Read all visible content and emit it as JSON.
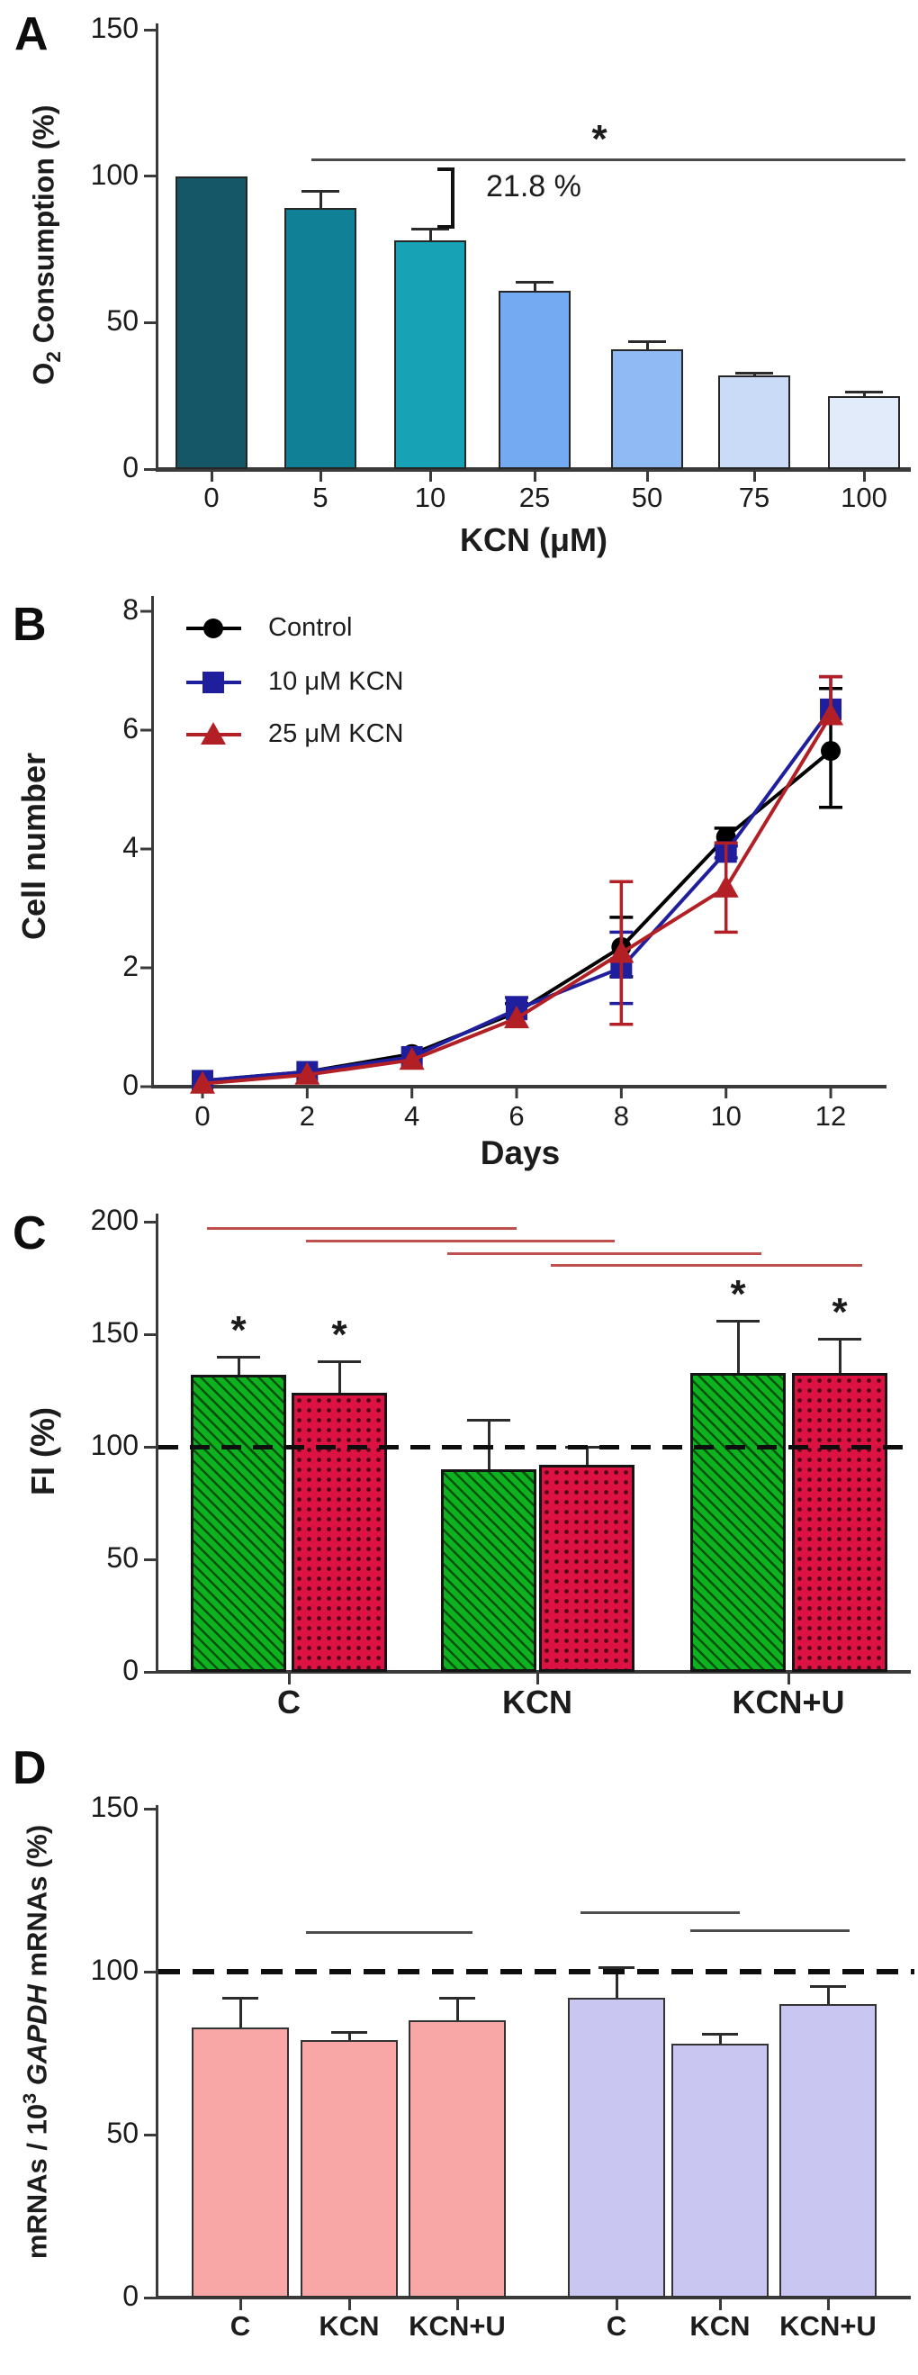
{
  "figure": {
    "panels": [
      {
        "letter": "A"
      },
      {
        "letter": "B"
      },
      {
        "letter": "C"
      },
      {
        "letter": "D"
      }
    ]
  },
  "chart_data": [
    {
      "panel": "A",
      "type": "bar",
      "ylabel_parts": [
        {
          "t": "O"
        },
        {
          "t": "2",
          "sub": true
        },
        {
          "t": " Consumption (%)"
        }
      ],
      "xlabel": "KCN (μM)",
      "categories": [
        "0",
        "5",
        "10",
        "25",
        "50",
        "75",
        "100"
      ],
      "values": [
        100,
        89,
        78,
        61,
        41,
        32,
        25
      ],
      "errors_up": [
        0,
        6,
        4,
        3,
        2.5,
        1,
        1.5
      ],
      "bar_colors": [
        "#155767",
        "#0f8096",
        "#18a2b6",
        "#73aaf2",
        "#8fbaf3",
        "#cadbf7",
        "#e2ebfa"
      ],
      "yticks": [
        0,
        50,
        100,
        150
      ],
      "ylim": [
        0,
        150
      ],
      "grid": false,
      "significance": {
        "line_y": 105,
        "label": "*",
        "from_category": "5",
        "to_category": "100"
      },
      "bracket_label": "21.8 %",
      "bracket_between": [
        "5",
        "10"
      ]
    },
    {
      "panel": "B",
      "type": "line",
      "ylabel": "Cell number",
      "xlabel": "Days",
      "x": [
        0,
        2,
        4,
        6,
        8,
        10,
        12
      ],
      "yticks": [
        0,
        2,
        4,
        6,
        8
      ],
      "ylim": [
        0,
        8
      ],
      "grid": false,
      "legend_position": "top-left",
      "series": [
        {
          "name": "Control",
          "marker": "circle",
          "color": "#000000",
          "values": [
            0.1,
            0.25,
            0.55,
            1.25,
            2.35,
            4.2,
            5.65
          ],
          "err_up": [
            0,
            0,
            0,
            0.15,
            0.5,
            0.15,
            1.05
          ],
          "err_down": [
            0,
            0,
            0,
            0,
            0.5,
            0.15,
            0.95
          ]
        },
        {
          "name": "10 μM KCN",
          "marker": "square",
          "color": "#1f1f9e",
          "values": [
            0.1,
            0.25,
            0.5,
            1.3,
            2.0,
            3.95,
            6.35
          ],
          "err_up": [
            0,
            0,
            0,
            0.2,
            0.6,
            0.1,
            0.55
          ],
          "err_down": [
            0,
            0,
            0,
            0,
            0.6,
            0.1,
            0
          ]
        },
        {
          "name": "25 μM KCN",
          "marker": "triangle",
          "color": "#b22025",
          "values": [
            0.05,
            0.2,
            0.45,
            1.15,
            2.25,
            3.35,
            6.25
          ],
          "err_up": [
            0,
            0,
            0,
            0,
            1.2,
            0.75,
            0.65
          ],
          "err_down": [
            0,
            0,
            0,
            0,
            1.2,
            0.75,
            0
          ]
        }
      ]
    },
    {
      "panel": "C",
      "type": "bar",
      "ylabel": "FI  (%)",
      "categories": [
        "C",
        "KCN",
        "KCN+U"
      ],
      "series": [
        {
          "name": "green-hatched",
          "fill": "#0db21e",
          "pattern": "diagonal-hatch",
          "values": [
            132,
            90,
            133
          ],
          "errors_up": [
            8,
            22,
            23
          ],
          "stars": [
            true,
            false,
            true
          ]
        },
        {
          "name": "red-dotted",
          "fill": "#dc1243",
          "pattern": "dots",
          "values": [
            124,
            92,
            133
          ],
          "errors_up": [
            14,
            8,
            15
          ],
          "stars": [
            true,
            false,
            true
          ]
        }
      ],
      "yticks": [
        0,
        50,
        100,
        150,
        200
      ],
      "ylim": [
        0,
        200
      ],
      "grid": false,
      "dashed_line_y": 100,
      "star_symbol": "*",
      "sig_lines": [
        {
          "color": "#c0504d",
          "y": 197,
          "from": "green C",
          "to": "green KCN"
        },
        {
          "color": "#c0504d",
          "y": 191.5,
          "from": "red C",
          "to": "red KCN"
        },
        {
          "color": "#c0504d",
          "y": 186,
          "from": "green KCN",
          "to": "green KCN+U"
        },
        {
          "color": "#c0504d",
          "y": 180.5,
          "from": "red KCN",
          "to": "red KCN+U"
        }
      ]
    },
    {
      "panel": "D",
      "type": "bar",
      "ylabel_parts": [
        {
          "t": "mRNAs / 10"
        },
        {
          "t": "3",
          "sup": true
        },
        {
          "t": " "
        },
        {
          "t": "GAPDH",
          "italic": true
        },
        {
          "t": " mRNAs (%)"
        }
      ],
      "groups": [
        {
          "name": "pink",
          "fill": "#f9a6a6",
          "categories": [
            "C",
            "KCN",
            "KCN+U"
          ],
          "values": [
            83,
            79,
            85
          ],
          "errors_up": [
            9,
            2.5,
            7
          ]
        },
        {
          "name": "lavender",
          "fill": "#c9c6f1",
          "categories": [
            "C",
            "KCN",
            "KCN+U"
          ],
          "values": [
            92,
            78,
            90
          ],
          "errors_up": [
            9.5,
            3,
            5.5
          ]
        }
      ],
      "yticks": [
        0,
        50,
        100,
        150
      ],
      "ylim": [
        0,
        150
      ],
      "grid": false,
      "dashed_line_y": 100,
      "sig_lines": [
        {
          "color": "#4d4d4d",
          "y": 112,
          "from": "pink KCN",
          "to": "pink KCN+U"
        },
        {
          "color": "#4d4d4d",
          "y": 118,
          "from": "lavender C",
          "to": "lavender KCN"
        },
        {
          "color": "#4d4d4d",
          "y": 112.5,
          "from": "lavender KCN",
          "to": "lavender KCN+U"
        }
      ]
    }
  ]
}
